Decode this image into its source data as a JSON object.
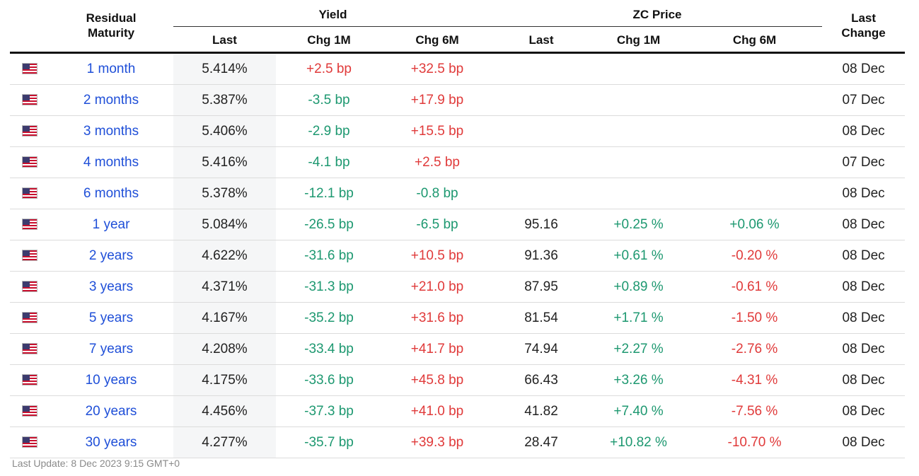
{
  "headers": {
    "maturity_line1": "Residual",
    "maturity_line2": "Maturity",
    "yield_group": "Yield",
    "zc_group": "ZC Price",
    "last_change_line1": "Last",
    "last_change_line2": "Change",
    "yield_last": "Last",
    "yield_chg1m": "Chg 1M",
    "yield_chg6m": "Chg 6M",
    "zc_last": "Last",
    "zc_chg1m": "Chg 1M",
    "zc_chg6m": "Chg 6M"
  },
  "flag_icon": "us-flag-icon",
  "colors": {
    "link": "#1f4fd8",
    "positive_yield": "#e03a3a",
    "negative_yield": "#1d9870",
    "yield_column_bg": "#f5f6f7"
  },
  "rows": [
    {
      "maturity": "1 month",
      "yield": "5.414%",
      "chg1m": "+2.5 bp",
      "chg6m": "+32.5 bp",
      "zc": "",
      "zc1m": "",
      "zc6m": "",
      "date": "08 Dec"
    },
    {
      "maturity": "2 months",
      "yield": "5.387%",
      "chg1m": "-3.5 bp",
      "chg6m": "+17.9 bp",
      "zc": "",
      "zc1m": "",
      "zc6m": "",
      "date": "07 Dec"
    },
    {
      "maturity": "3 months",
      "yield": "5.406%",
      "chg1m": "-2.9 bp",
      "chg6m": "+15.5 bp",
      "zc": "",
      "zc1m": "",
      "zc6m": "",
      "date": "08 Dec"
    },
    {
      "maturity": "4 months",
      "yield": "5.416%",
      "chg1m": "-4.1 bp",
      "chg6m": "+2.5 bp",
      "zc": "",
      "zc1m": "",
      "zc6m": "",
      "date": "07 Dec"
    },
    {
      "maturity": "6 months",
      "yield": "5.378%",
      "chg1m": "-12.1 bp",
      "chg6m": "-0.8 bp",
      "zc": "",
      "zc1m": "",
      "zc6m": "",
      "date": "08 Dec"
    },
    {
      "maturity": "1 year",
      "yield": "5.084%",
      "chg1m": "-26.5 bp",
      "chg6m": "-6.5 bp",
      "zc": "95.16",
      "zc1m": "+0.25 %",
      "zc6m": "+0.06 %",
      "date": "08 Dec"
    },
    {
      "maturity": "2 years",
      "yield": "4.622%",
      "chg1m": "-31.6 bp",
      "chg6m": "+10.5 bp",
      "zc": "91.36",
      "zc1m": "+0.61 %",
      "zc6m": "-0.20 %",
      "date": "08 Dec"
    },
    {
      "maturity": "3 years",
      "yield": "4.371%",
      "chg1m": "-31.3 bp",
      "chg6m": "+21.0 bp",
      "zc": "87.95",
      "zc1m": "+0.89 %",
      "zc6m": "-0.61 %",
      "date": "08 Dec"
    },
    {
      "maturity": "5 years",
      "yield": "4.167%",
      "chg1m": "-35.2 bp",
      "chg6m": "+31.6 bp",
      "zc": "81.54",
      "zc1m": "+1.71 %",
      "zc6m": "-1.50 %",
      "date": "08 Dec"
    },
    {
      "maturity": "7 years",
      "yield": "4.208%",
      "chg1m": "-33.4 bp",
      "chg6m": "+41.7 bp",
      "zc": "74.94",
      "zc1m": "+2.27 %",
      "zc6m": "-2.76 %",
      "date": "08 Dec"
    },
    {
      "maturity": "10 years",
      "yield": "4.175%",
      "chg1m": "-33.6 bp",
      "chg6m": "+45.8 bp",
      "zc": "66.43",
      "zc1m": "+3.26 %",
      "zc6m": "-4.31 %",
      "date": "08 Dec"
    },
    {
      "maturity": "20 years",
      "yield": "4.456%",
      "chg1m": "-37.3 bp",
      "chg6m": "+41.0 bp",
      "zc": "41.82",
      "zc1m": "+7.40 %",
      "zc6m": "-7.56 %",
      "date": "08 Dec"
    },
    {
      "maturity": "30 years",
      "yield": "4.277%",
      "chg1m": "-35.7 bp",
      "chg6m": "+39.3 bp",
      "zc": "28.47",
      "zc1m": "+10.82 %",
      "zc6m": "-10.70 %",
      "date": "08 Dec"
    }
  ],
  "footer": {
    "label": "Last Update:",
    "value": "8 Dec 2023 9:15 GMT+0"
  }
}
